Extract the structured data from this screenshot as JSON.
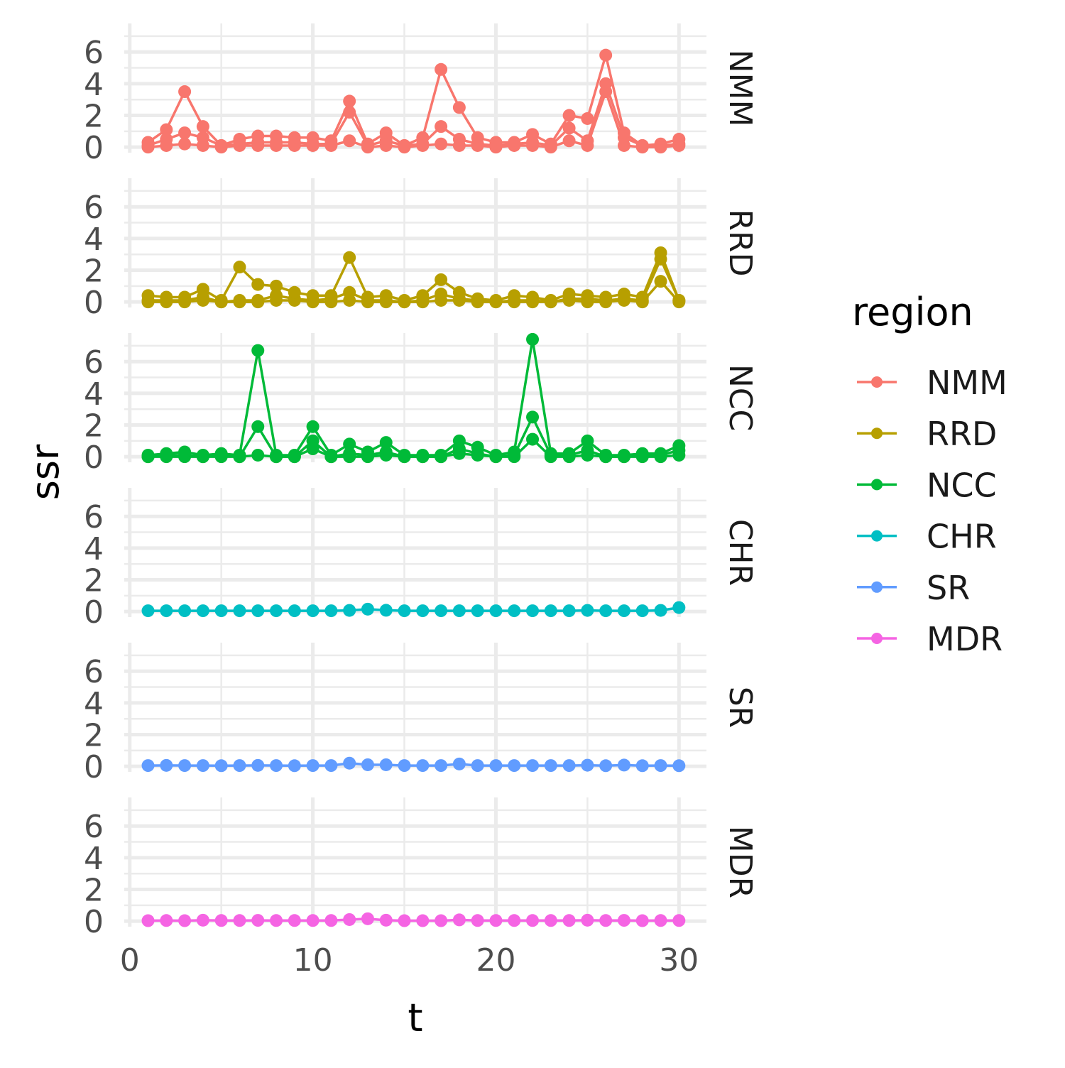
{
  "chart_data": {
    "type": "line",
    "title": "",
    "xlabel": "t",
    "ylabel": "ssr",
    "xlim": [
      -0.3,
      31.5
    ],
    "ylim": [
      -0.35,
      7.8
    ],
    "x_ticks": [
      0,
      10,
      20,
      30
    ],
    "x_tick_labels": [
      "0",
      "10",
      "20",
      "30"
    ],
    "y_ticks": [
      0,
      2,
      4,
      6
    ],
    "y_tick_labels": [
      "0",
      "2",
      "4",
      "6"
    ],
    "grid": true,
    "facet_by": "region",
    "legend": {
      "title": "region",
      "placement": "right",
      "entries": [
        "NMM",
        "RRD",
        "NCC",
        "CHR",
        "SR",
        "MDR"
      ]
    },
    "colors": {
      "NMM": "#F8766D",
      "RRD": "#B79F00",
      "NCC": "#00BA38",
      "CHR": "#00BFC4",
      "SR": "#619CFF",
      "MDR": "#F564E3"
    },
    "x": [
      1,
      2,
      3,
      4,
      5,
      6,
      7,
      8,
      9,
      10,
      11,
      12,
      13,
      14,
      15,
      16,
      17,
      18,
      19,
      20,
      21,
      22,
      23,
      24,
      25,
      26,
      27,
      28,
      29,
      30
    ],
    "panels": [
      {
        "region": "NMM",
        "series": [
          [
            0.3,
            1.1,
            3.5,
            1.3,
            0.1,
            0.5,
            0.7,
            0.7,
            0.6,
            0.6,
            0.4,
            2.9,
            0.2,
            0.9,
            0.1,
            0.6,
            4.9,
            2.5,
            0.6,
            0.3,
            0.3,
            0.8,
            0.2,
            2.0,
            1.8,
            5.8,
            0.9,
            0.1,
            0.2,
            0.5
          ],
          [
            0.1,
            0.5,
            0.9,
            0.6,
            0.1,
            0.2,
            0.3,
            0.3,
            0.3,
            0.2,
            0.2,
            2.2,
            0.1,
            0.4,
            0.1,
            0.2,
            1.3,
            0.5,
            0.2,
            0.1,
            0.2,
            0.3,
            0.1,
            1.2,
            0.4,
            4.0,
            0.6,
            0.1,
            0.1,
            0.2
          ],
          [
            0.0,
            0.1,
            0.2,
            0.1,
            0.0,
            0.1,
            0.1,
            0.1,
            0.1,
            0.1,
            0.1,
            0.4,
            0.0,
            0.1,
            0.0,
            0.1,
            0.2,
            0.1,
            0.1,
            0.0,
            0.1,
            0.1,
            0.0,
            0.4,
            0.1,
            3.5,
            0.1,
            0.0,
            0.0,
            0.1
          ]
        ]
      },
      {
        "region": "RRD",
        "series": [
          [
            0.4,
            0.3,
            0.3,
            0.8,
            0.1,
            2.2,
            1.1,
            1.0,
            0.6,
            0.4,
            0.4,
            2.8,
            0.3,
            0.4,
            0.1,
            0.4,
            1.4,
            0.6,
            0.2,
            0.1,
            0.4,
            0.3,
            0.1,
            0.5,
            0.4,
            0.3,
            0.5,
            0.3,
            3.1,
            0.1
          ],
          [
            0.1,
            0.1,
            0.1,
            0.3,
            0.0,
            0.1,
            0.1,
            0.4,
            0.2,
            0.1,
            0.2,
            0.6,
            0.1,
            0.1,
            0.0,
            0.1,
            0.5,
            0.2,
            0.1,
            0.0,
            0.1,
            0.1,
            0.0,
            0.2,
            0.2,
            0.1,
            0.2,
            0.1,
            2.7,
            0.1
          ],
          [
            0.0,
            0.0,
            0.0,
            0.1,
            0.0,
            0.0,
            0.0,
            0.1,
            0.1,
            0.0,
            0.0,
            0.1,
            0.0,
            0.0,
            0.0,
            0.0,
            0.1,
            0.1,
            0.0,
            0.0,
            0.0,
            0.0,
            0.0,
            0.1,
            0.0,
            0.0,
            0.1,
            0.0,
            1.3,
            0.0
          ]
        ]
      },
      {
        "region": "NCC",
        "series": [
          [
            0.1,
            0.2,
            0.3,
            0.1,
            0.2,
            0.1,
            6.7,
            0.1,
            0.1,
            1.9,
            0.1,
            0.8,
            0.3,
            0.9,
            0.1,
            0.1,
            0.1,
            1.0,
            0.6,
            0.1,
            0.3,
            7.4,
            0.2,
            0.2,
            1.0,
            0.1,
            0.1,
            0.2,
            0.2,
            0.7
          ],
          [
            0.0,
            0.1,
            0.1,
            0.0,
            0.1,
            0.0,
            1.9,
            0.0,
            0.0,
            1.0,
            0.0,
            0.2,
            0.1,
            0.3,
            0.0,
            0.0,
            0.0,
            0.5,
            0.2,
            0.0,
            0.1,
            2.5,
            0.1,
            0.1,
            0.4,
            0.0,
            0.0,
            0.1,
            0.1,
            0.4
          ],
          [
            0.0,
            0.0,
            0.0,
            0.0,
            0.0,
            0.0,
            0.1,
            0.0,
            0.0,
            0.5,
            0.0,
            0.0,
            0.0,
            0.1,
            0.0,
            0.0,
            0.0,
            0.2,
            0.1,
            0.0,
            0.0,
            1.1,
            0.0,
            0.0,
            0.1,
            0.0,
            0.0,
            0.0,
            0.0,
            0.1
          ]
        ]
      },
      {
        "region": "CHR",
        "series": [
          [
            0.05,
            0.05,
            0.05,
            0.05,
            0.05,
            0.05,
            0.05,
            0.05,
            0.05,
            0.05,
            0.05,
            0.07,
            0.15,
            0.08,
            0.05,
            0.05,
            0.05,
            0.05,
            0.05,
            0.05,
            0.05,
            0.05,
            0.05,
            0.05,
            0.07,
            0.05,
            0.05,
            0.05,
            0.07,
            0.25
          ]
        ]
      },
      {
        "region": "SR",
        "series": [
          [
            0.05,
            0.06,
            0.05,
            0.05,
            0.04,
            0.05,
            0.06,
            0.05,
            0.04,
            0.05,
            0.05,
            0.2,
            0.1,
            0.1,
            0.05,
            0.05,
            0.05,
            0.15,
            0.05,
            0.05,
            0.05,
            0.05,
            0.05,
            0.05,
            0.07,
            0.04,
            0.08,
            0.04,
            0.05,
            0.04
          ]
        ]
      },
      {
        "region": "MDR",
        "series": [
          [
            0.03,
            0.04,
            0.03,
            0.06,
            0.04,
            0.04,
            0.05,
            0.04,
            0.04,
            0.04,
            0.04,
            0.1,
            0.15,
            0.06,
            0.03,
            0.03,
            0.03,
            0.08,
            0.04,
            0.04,
            0.04,
            0.04,
            0.04,
            0.04,
            0.06,
            0.04,
            0.05,
            0.03,
            0.04,
            0.04
          ]
        ]
      }
    ]
  }
}
